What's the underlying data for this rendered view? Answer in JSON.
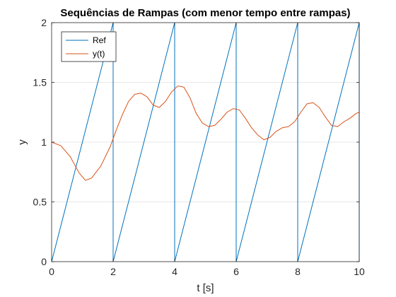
{
  "chart_data": {
    "type": "line",
    "title": "Sequências de Rampas (com menor tempo entre rampas)",
    "xlabel": "t [s]",
    "ylabel": "y",
    "xlim": [
      0,
      10
    ],
    "ylim": [
      0,
      2
    ],
    "xticks": [
      0,
      2,
      4,
      6,
      8,
      10
    ],
    "yticks": [
      0,
      0.5,
      1,
      1.5,
      2
    ],
    "xtick_labels": [
      "0",
      "2",
      "4",
      "6",
      "8",
      "10"
    ],
    "ytick_labels": [
      "0",
      "0.5",
      "1",
      "1.5",
      "2"
    ],
    "grid": "horizontal",
    "box": true,
    "legend": {
      "placement": "top-left"
    },
    "colors": {
      "ref": "#0072BD",
      "y": "#D95319",
      "grid": "#e0e0e0",
      "axis": "#262626"
    },
    "series": [
      {
        "name": "Ref",
        "color": "#0072BD",
        "x": [
          0,
          2,
          2,
          4,
          4,
          6,
          6,
          8,
          8,
          10,
          10
        ],
        "y": [
          0,
          2,
          0,
          2,
          0,
          2,
          0,
          2,
          0,
          2,
          0
        ]
      },
      {
        "name": "y(t)",
        "color": "#D95319",
        "x": [
          0,
          0.3,
          0.6,
          0.9,
          1.1,
          1.3,
          1.6,
          1.9,
          2.1,
          2.3,
          2.5,
          2.7,
          2.9,
          3.1,
          3.3,
          3.5,
          3.7,
          3.9,
          4.1,
          4.3,
          4.5,
          4.7,
          4.9,
          5.1,
          5.3,
          5.5,
          5.7,
          5.9,
          6.1,
          6.3,
          6.5,
          6.7,
          6.9,
          7.1,
          7.3,
          7.5,
          7.7,
          7.9,
          8.1,
          8.3,
          8.5,
          8.7,
          8.9,
          9.1,
          9.3,
          9.5,
          9.7,
          9.9,
          10
        ],
        "y": [
          1.0,
          0.97,
          0.88,
          0.74,
          0.68,
          0.7,
          0.8,
          0.96,
          1.1,
          1.23,
          1.34,
          1.4,
          1.41,
          1.38,
          1.31,
          1.29,
          1.34,
          1.42,
          1.47,
          1.46,
          1.37,
          1.24,
          1.16,
          1.13,
          1.14,
          1.19,
          1.25,
          1.28,
          1.27,
          1.2,
          1.12,
          1.06,
          1.02,
          1.04,
          1.09,
          1.12,
          1.13,
          1.17,
          1.25,
          1.32,
          1.33,
          1.29,
          1.21,
          1.14,
          1.13,
          1.17,
          1.2,
          1.24,
          1.25
        ]
      }
    ]
  }
}
